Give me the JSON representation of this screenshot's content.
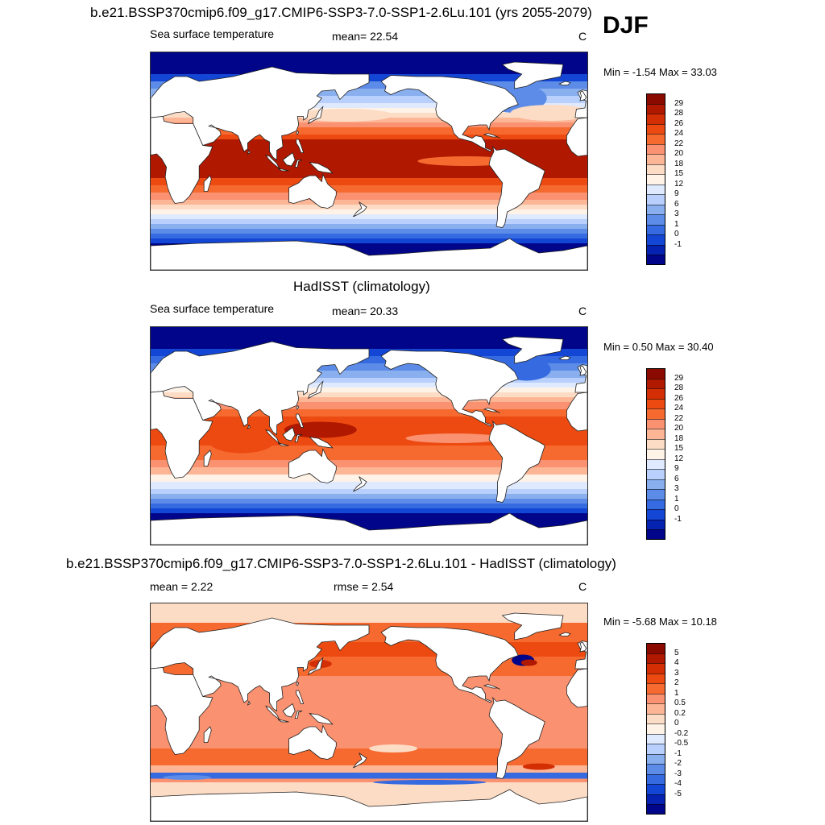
{
  "header": {
    "title": "b.e21.BSSP370cmip6.f09_g17.CMIP6-SSP3-7.0-SSP1-2.6Lu.101 (yrs 2055-2079)",
    "season": "DJF"
  },
  "panels": [
    {
      "id": "model",
      "title": "",
      "left_label": "Sea surface temperature",
      "center_label": "mean=  22.54",
      "right_label": "C",
      "minmax": "Min =  -1.54 Max =  33.03",
      "colorbar": {
        "labels": [
          "29",
          "28",
          "26",
          "24",
          "22",
          "20",
          "18",
          "15",
          "12",
          "9",
          "6",
          "3",
          "1",
          "0",
          "-1"
        ],
        "colors": [
          "#8b0a00",
          "#b01800",
          "#d42e05",
          "#ec4a10",
          "#f66a30",
          "#fa9170",
          "#fcb595",
          "#fddcc5",
          "#fef3e6",
          "#dfeaff",
          "#b8d0fb",
          "#8aafef",
          "#5d8ce8",
          "#356ae0",
          "#1446d6",
          "#0522b0",
          "#00058a"
        ]
      },
      "scheme": "abs"
    },
    {
      "id": "obs",
      "title": "HadISST (climatology)",
      "left_label": "Sea surface temperature",
      "center_label": "mean=  20.33",
      "right_label": "C",
      "minmax": "Min =   0.50 Max =  30.40",
      "colorbar": {
        "labels": [
          "29",
          "28",
          "26",
          "24",
          "22",
          "20",
          "18",
          "15",
          "12",
          "9",
          "6",
          "3",
          "1",
          "0",
          "-1"
        ],
        "colors": [
          "#8b0a00",
          "#b01800",
          "#d42e05",
          "#ec4a10",
          "#f66a30",
          "#fa9170",
          "#fcb595",
          "#fddcc5",
          "#fef3e6",
          "#dfeaff",
          "#b8d0fb",
          "#8aafef",
          "#5d8ce8",
          "#356ae0",
          "#1446d6",
          "#0522b0",
          "#00058a"
        ]
      },
      "scheme": "abs_obs"
    },
    {
      "id": "diff",
      "title": "b.e21.BSSP370cmip6.f09_g17.CMIP6-SSP3-7.0-SSP1-2.6Lu.101 - HadISST (climatology)",
      "left_label": "mean =   2.22",
      "center_label": "rmse =   2.54",
      "right_label": "C",
      "minmax": "Min =  -5.68 Max =  10.18",
      "colorbar": {
        "labels": [
          "5",
          "4",
          "3",
          "2",
          "1",
          "0.5",
          "0.2",
          "0",
          "-0.2",
          "-0.5",
          "-1",
          "-2",
          "-3",
          "-4",
          "-5"
        ],
        "colors": [
          "#8b0a00",
          "#b01800",
          "#d42e05",
          "#ec4a10",
          "#f66a30",
          "#fa9170",
          "#fcb595",
          "#fddcc5",
          "#fef3e6",
          "#dfeaff",
          "#b8d0fb",
          "#8aafef",
          "#5d8ce8",
          "#356ae0",
          "#1446d6",
          "#0522b0",
          "#00058a"
        ]
      },
      "scheme": "diff"
    }
  ]
}
